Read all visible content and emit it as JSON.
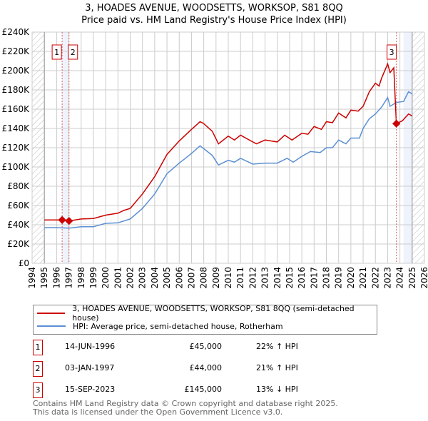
{
  "title": "3, HOADES AVENUE, WOODSETTS, WORKSOP, S81 8QQ",
  "subtitle": "Price paid vs. HM Land Registry's House Price Index (HPI)",
  "chart_data": {
    "type": "line",
    "title": "3, HOADES AVENUE, WOODSETTS, WORKSOP, S81 8QQ",
    "subtitle": "Price paid vs. HM Land Registry's House Price Index (HPI)",
    "xlim": [
      1994,
      2026
    ],
    "ylim": [
      0,
      240000
    ],
    "x_ticks": [
      "1994",
      "1995",
      "1996",
      "1997",
      "1998",
      "1999",
      "2000",
      "2001",
      "2002",
      "2003",
      "2004",
      "2005",
      "2006",
      "2007",
      "2008",
      "2009",
      "2010",
      "2011",
      "2012",
      "2013",
      "2014",
      "2015",
      "2016",
      "2017",
      "2018",
      "2019",
      "2020",
      "2021",
      "2022",
      "2023",
      "2024",
      "2025",
      "2026"
    ],
    "y_ticks": [
      {
        "v": 0,
        "label": "£0"
      },
      {
        "v": 20000,
        "label": "£20K"
      },
      {
        "v": 40000,
        "label": "£40K"
      },
      {
        "v": 60000,
        "label": "£60K"
      },
      {
        "v": 80000,
        "label": "£80K"
      },
      {
        "v": 100000,
        "label": "£100K"
      },
      {
        "v": 120000,
        "label": "£120K"
      },
      {
        "v": 140000,
        "label": "£140K"
      },
      {
        "v": 160000,
        "label": "£160K"
      },
      {
        "v": 180000,
        "label": "£180K"
      },
      {
        "v": 200000,
        "label": "£200K"
      },
      {
        "v": 220000,
        "label": "£220K"
      },
      {
        "v": 240000,
        "label": "£240K"
      }
    ],
    "grid": true,
    "legend_placement": "below",
    "series": [
      {
        "name": "3, HOADES AVENUE, WOODSETTS, WORKSOP, S81 8QQ (semi-detached house)",
        "color": "#cc0000",
        "x": [
          1995,
          1996.45,
          1997.01,
          1998,
          1999,
          2000,
          2001,
          2001.5,
          2002,
          2003,
          2004,
          2005,
          2006,
          2007,
          2007.7,
          2008,
          2008.7,
          2009.2,
          2010,
          2010.5,
          2011,
          2012,
          2012.3,
          2013,
          2014,
          2014.6,
          2015.2,
          2016,
          2016.5,
          2017,
          2017.6,
          2018,
          2018.5,
          2019,
          2019.6,
          2020,
          2020.6,
          2021,
          2021.5,
          2022,
          2022.3,
          2022.5,
          2023,
          2023.2,
          2023.5,
          2023.71,
          2024.2,
          2024.7,
          2025
        ],
        "y": [
          45000,
          45000,
          44000,
          46000,
          46500,
          50000,
          52000,
          55000,
          57000,
          72000,
          90000,
          113000,
          127000,
          139000,
          147000,
          145000,
          137000,
          124000,
          132000,
          128000,
          133000,
          126000,
          124000,
          128000,
          126000,
          133000,
          128000,
          135000,
          134000,
          142000,
          139000,
          147000,
          146000,
          156000,
          151000,
          159000,
          158000,
          163000,
          178000,
          187000,
          184000,
          192000,
          207000,
          198000,
          203000,
          145000,
          148000,
          155000,
          153000
        ]
      },
      {
        "name": "HPI: Average price, semi-detached house, Rotherham",
        "color": "#5b8fd4",
        "x": [
          1995,
          1996,
          1997,
          1998,
          1999,
          2000,
          2001,
          2002,
          2003,
          2004,
          2005,
          2006,
          2007,
          2007.7,
          2008,
          2008.7,
          2009.2,
          2010,
          2010.5,
          2011,
          2012,
          2013,
          2014,
          2014.8,
          2015.3,
          2016,
          2016.7,
          2017.5,
          2018,
          2018.5,
          2019,
          2019.6,
          2020,
          2020.7,
          2021,
          2021.5,
          2022,
          2022.5,
          2023,
          2023.2,
          2023.7,
          2024.3,
          2024.7,
          2025
        ],
        "y": [
          37000,
          37000,
          36500,
          38000,
          38000,
          41500,
          42000,
          46000,
          57000,
          72000,
          93000,
          104000,
          114000,
          122000,
          119000,
          112000,
          102000,
          107000,
          105000,
          109000,
          103000,
          104000,
          104000,
          109000,
          105000,
          111000,
          116000,
          115000,
          120000,
          120000,
          128000,
          124000,
          130000,
          130000,
          140000,
          150000,
          155000,
          162000,
          172000,
          163000,
          167000,
          168000,
          178000,
          176000
        ]
      }
    ],
    "sales": [
      {
        "id": "1",
        "x": 1996.45,
        "y": 45000
      },
      {
        "id": "2",
        "x": 1997.01,
        "y": 44000
      },
      {
        "id": "3",
        "x": 2023.71,
        "y": 145000
      }
    ]
  },
  "legend": {
    "property": "3, HOADES AVENUE, WOODSETTS, WORKSOP, S81 8QQ (semi-detached house)",
    "hpi": "HPI: Average price, semi-detached house, Rotherham"
  },
  "transactions": [
    {
      "id": "1",
      "date": "14-JUN-1996",
      "price": "£45,000",
      "hpi": "22% ↑ HPI"
    },
    {
      "id": "2",
      "date": "03-JAN-1997",
      "price": "£44,000",
      "hpi": "21% ↑ HPI"
    },
    {
      "id": "3",
      "date": "15-SEP-2023",
      "price": "£145,000",
      "hpi": "13% ↓ HPI"
    }
  ],
  "footer": {
    "line1": "Contains HM Land Registry data © Crown copyright and database right 2025.",
    "line2": "This data is licensed under the Open Government Licence v3.0."
  }
}
